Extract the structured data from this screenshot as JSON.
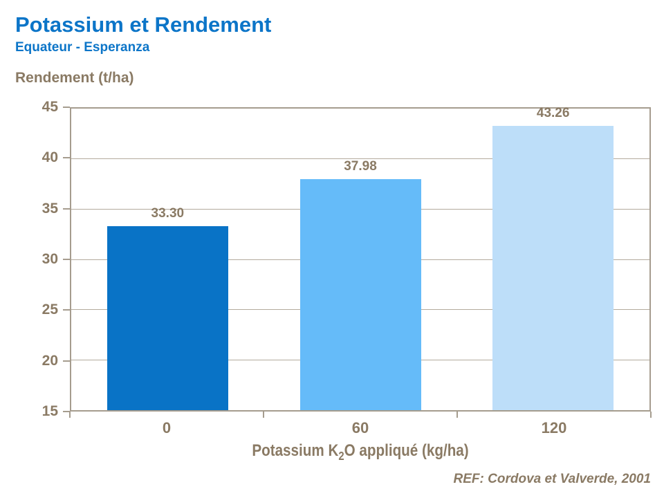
{
  "chart_data": {
    "type": "bar",
    "title": "Potassium et Rendement",
    "subtitle": "Equateur - Esperanza",
    "ylabel": "Rendement (t/ha)",
    "xlabel": "Potassium K2O appliqué (kg/ha)",
    "xlabel_parts": {
      "pre": "Potassium K",
      "sub": "2",
      "post": "O appliqué (kg/ha)"
    },
    "categories": [
      "0",
      "60",
      "120"
    ],
    "values": [
      33.3,
      37.98,
      43.26
    ],
    "value_labels": [
      "33.30",
      "37.98",
      "43.26"
    ],
    "bar_colors": [
      "#0973c6",
      "#65bbf9",
      "#bddef9"
    ],
    "ylim": [
      15,
      45
    ],
    "ytick_step": 5,
    "ytick_labels": [
      "45",
      "40",
      "35",
      "30",
      "25",
      "20",
      "15"
    ],
    "grid": true,
    "legend": "none",
    "reference": "REF: Cordova et Valverde, 2001"
  },
  "colors": {
    "title_blue": "#0c75c8",
    "text_brown": "#8a7a64",
    "axis_border": "#a59c8e",
    "gridline": "#b3aa9c",
    "background": "#ffffff"
  }
}
